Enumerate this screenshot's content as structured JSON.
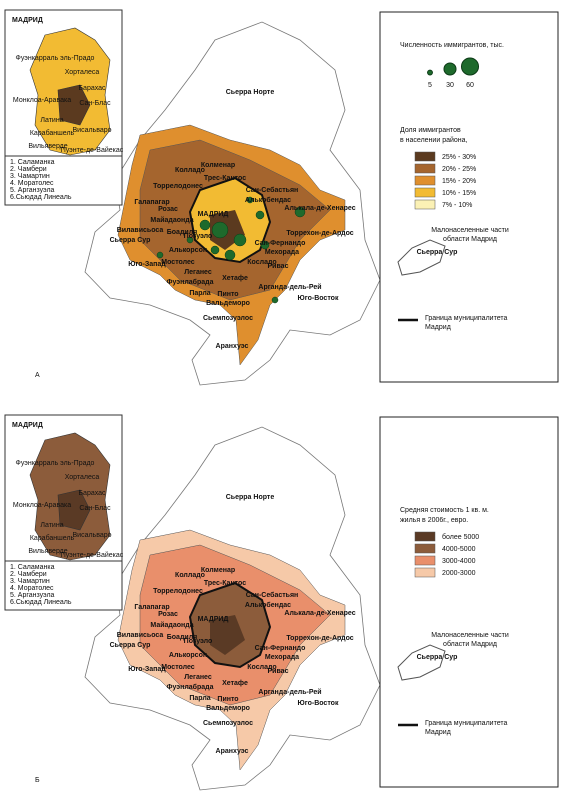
{
  "map_labels": [
    "Сьерра Норте",
    "Колменар",
    "Колладо",
    "Торрелодонес",
    "Трес-Кантос",
    "Сан-Себастьян",
    "Алькобендас",
    "Алькала-де-Хенарес",
    "Галапагар",
    "Розас",
    "Майадаонда",
    "Вилависьоса",
    "Боадиля",
    "Позуэло",
    "МАДРИД",
    "Торрехон-де-Ардос",
    "Сан-Фернандо",
    "Мехорада",
    "Алькорсон",
    "Мостолес",
    "Косладо",
    "Леганес",
    "Ривас",
    "Хетафе",
    "Фуэнлабрада",
    "Парла",
    "Пинто",
    "Вальдеморо",
    "Арганда-дель-Рей",
    "Сьерра Сур",
    "Юго-Запад",
    "Юго-Восток",
    "Сьемпозуэлос",
    "Аранхуэс"
  ],
  "inset": {
    "title": "МАДРИД",
    "labels": [
      "Фуэнкарраль эль-Прадо",
      "Хорталеса",
      "Барахас",
      "Монклоа-Аравака",
      "Сан-Блас",
      "Латина",
      "Карабаншель",
      "Висальваро",
      "Вильяверде",
      "Пуэнте-де-Вайекас"
    ],
    "list": [
      "1. Саламанка",
      "2. Чамбери",
      "3. Чамартин",
      "4. Моратолес",
      "5. Арганзуэла",
      "6.Сьюдад Линеаль"
    ]
  },
  "panels": [
    {
      "letter": "А",
      "size_title": "Численность иммигрантов, тыс.",
      "sizes": [
        5,
        30,
        60
      ],
      "legend_title": [
        "Доля иммигрантов",
        "в населении района,"
      ],
      "classes": [
        {
          "label": "25% - 30%",
          "color": "#5b3a1f"
        },
        {
          "label": "20% - 25%",
          "color": "#a5652e"
        },
        {
          "label": "15% - 20%",
          "color": "#df8f2e"
        },
        {
          "label": "10% - 15%",
          "color": "#f2bb33"
        },
        {
          "label": "7% - 10%",
          "color": "#fbf1b5"
        }
      ],
      "sparse_label": [
        "Малонаселенные части",
        "области Мадрид"
      ],
      "sparse_region": "Сьерра Сур",
      "border_label": [
        "Граница муниципалитета",
        "Мадрид"
      ]
    },
    {
      "letter": "Б",
      "legend_title": [
        "Средняя стоимость 1 кв. м.",
        "жилья в 2006г., евро."
      ],
      "classes": [
        {
          "label": "более 5000",
          "color": "#5a3a25"
        },
        {
          "label": "4000-5000",
          "color": "#8c5c3b"
        },
        {
          "label": "3000-4000",
          "color": "#e98f6b"
        },
        {
          "label": "2000-3000",
          "color": "#f6c9a8"
        }
      ],
      "sparse_label": [
        "Малонаселенные части",
        "области Мадрид"
      ],
      "sparse_region": "Сьерра Сур",
      "border_label": [
        "Граница муниципалитета",
        "Мадрид"
      ]
    }
  ]
}
